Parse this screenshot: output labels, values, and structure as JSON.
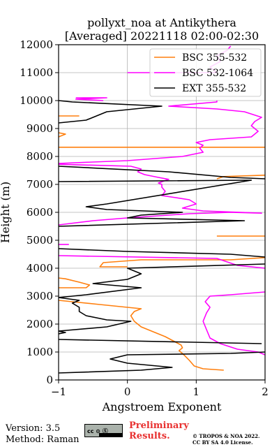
{
  "chart_data": {
    "type": "line",
    "title_line1": "pollyxt_noa at Antikythera",
    "title_line2": "[Averaged] 20221118 02:00-02:30",
    "xlabel": "Angstroem Exponent",
    "ylabel": "Height (m)",
    "xlim": [
      -1,
      2
    ],
    "ylim": [
      0,
      12000
    ],
    "xticks": [
      "−1",
      "0",
      "1",
      "2"
    ],
    "yticks": [
      "0",
      "1000",
      "2000",
      "3000",
      "4000",
      "5000",
      "6000",
      "7000",
      "8000",
      "9000",
      "10000",
      "11000",
      "12000"
    ],
    "grid": true,
    "legend_position": "top-right",
    "series": [
      {
        "name": "BSC 355-532",
        "color": "#ff7f0e",
        "segments": [
          [
            [
              1.4,
              350
            ],
            [
              1.1,
              400
            ],
            [
              0.97,
              500
            ],
            [
              0.9,
              700
            ],
            [
              0.82,
              900
            ],
            [
              0.75,
              1050
            ],
            [
              0.8,
              1150
            ],
            [
              0.78,
              1250
            ],
            [
              0.55,
              1550
            ],
            [
              0.4,
              1700
            ],
            [
              0.2,
              1900
            ],
            [
              0.1,
              2100
            ],
            [
              0.05,
              2300
            ],
            [
              0.1,
              2450
            ],
            [
              0.2,
              2550
            ],
            [
              -0.2,
              2650
            ],
            [
              -0.4,
              2700
            ],
            [
              -0.8,
              2800
            ],
            [
              -1,
              2850
            ]
          ],
          [
            [
              -1,
              3300
            ],
            [
              -0.6,
              3300
            ],
            [
              -0.55,
              3400
            ],
            [
              -0.7,
              3500
            ],
            [
              -0.9,
              3620
            ],
            [
              -1,
              3650
            ]
          ],
          [
            [
              0,
              4050
            ],
            [
              -0.4,
              4050
            ],
            [
              -0.35,
              4200
            ],
            [
              0.2,
              4300
            ],
            [
              1.5,
              4300
            ],
            [
              2,
              4380
            ]
          ],
          [
            [
              1.3,
              5150
            ],
            [
              2,
              5150
            ]
          ],
          [
            [
              1.3,
              7200
            ],
            [
              1.4,
              7280
            ],
            [
              2,
              7330
            ]
          ],
          [
            [
              -1,
              8330
            ],
            [
              2,
              8330
            ]
          ],
          [
            [
              -1,
              8700
            ],
            [
              -0.9,
              8800
            ],
            [
              -1,
              8850
            ]
          ],
          [
            [
              -1,
              9450
            ],
            [
              -0.7,
              9450
            ]
          ]
        ]
      },
      {
        "name": "BSC 532-1064",
        "color": "#ff00ff",
        "segments": [
          [
            [
              2,
              900
            ],
            [
              1.9,
              1000
            ],
            [
              1.6,
              1100
            ],
            [
              1.35,
              1300
            ],
            [
              1.2,
              1500
            ],
            [
              1.15,
              1800
            ],
            [
              1.1,
              2100
            ],
            [
              1.15,
              2400
            ],
            [
              1.2,
              2600
            ],
            [
              1.13,
              2800
            ],
            [
              1.2,
              3000
            ],
            [
              1.5,
              3050
            ],
            [
              2,
              3150
            ]
          ],
          [
            [
              2,
              4000
            ],
            [
              1.6,
              4100
            ],
            [
              1.3,
              4350
            ],
            [
              -1,
              4450
            ]
          ],
          [
            [
              -1,
              4850
            ],
            [
              -0.85,
              4850
            ]
          ],
          [
            [
              -1,
              5550
            ],
            [
              -0.5,
              5700
            ],
            [
              0,
              5800
            ],
            [
              0.9,
              5950
            ],
            [
              1.5,
              6000
            ],
            [
              1.95,
              5970
            ],
            [
              1.1,
              6050
            ],
            [
              0.8,
              6150
            ],
            [
              1,
              6300
            ],
            [
              0.9,
              6450
            ],
            [
              0.5,
              6600
            ],
            [
              0.55,
              6750
            ],
            [
              0.5,
              6900
            ],
            [
              0.5,
              7000
            ],
            [
              0.45,
              7050
            ],
            [
              0.6,
              7180
            ],
            [
              0.45,
              7250
            ],
            [
              0.25,
              7350
            ],
            [
              0.15,
              7450
            ],
            [
              0.2,
              7550
            ],
            [
              0.05,
              7650
            ],
            [
              -1,
              7720
            ]
          ],
          [
            [
              -1,
              7750
            ],
            [
              0,
              7850
            ],
            [
              0.8,
              8000
            ],
            [
              1.1,
              8150
            ],
            [
              1.05,
              8300
            ],
            [
              1.1,
              8400
            ],
            [
              1,
              8500
            ],
            [
              1.2,
              8600
            ],
            [
              1.8,
              8700
            ],
            [
              1.9,
              8900
            ],
            [
              1.8,
              9100
            ],
            [
              1.85,
              9250
            ],
            [
              1.95,
              9400
            ],
            [
              1.7,
              9600
            ],
            [
              1.3,
              9700
            ],
            [
              0.6,
              9800
            ],
            [
              1.3,
              9950
            ],
            [
              1.3,
              10000
            ]
          ],
          [
            [
              -0.75,
              10100
            ],
            [
              -0.3,
              10100
            ],
            [
              -0.75,
              10050
            ],
            [
              -0.35,
              10000
            ]
          ],
          [
            [
              0,
              11000
            ],
            [
              1.3,
              11000
            ],
            [
              1.2,
              11200
            ],
            [
              1.35,
              11400
            ],
            [
              1.3,
              11600
            ],
            [
              1.45,
              11800
            ],
            [
              1.5,
              11950
            ]
          ]
        ]
      },
      {
        "name": "EXT 355-532",
        "color": "#000000",
        "segments": [
          [
            [
              -1,
              250
            ],
            [
              0.2,
              350
            ],
            [
              0.65,
              450
            ],
            [
              0,
              600
            ],
            [
              -0.25,
              750
            ],
            [
              0,
              900
            ],
            [
              1.5,
              950
            ],
            [
              2,
              1000
            ]
          ],
          [
            [
              -1,
              1450
            ],
            [
              1.95,
              1300
            ]
          ],
          [
            [
              -1,
              1650
            ],
            [
              -0.9,
              1700
            ],
            [
              -1,
              1750
            ],
            [
              -0.3,
              1900
            ],
            [
              0.05,
              2100
            ],
            [
              -0.3,
              2150
            ],
            [
              -0.6,
              2300
            ],
            [
              -0.7,
              2450
            ],
            [
              -0.7,
              2600
            ],
            [
              -0.8,
              2750
            ],
            [
              -0.7,
              2850
            ],
            [
              -1,
              2950
            ],
            [
              -0.6,
              3050
            ],
            [
              0.2,
              3300
            ],
            [
              -0.5,
              3450
            ],
            [
              0,
              3600
            ],
            [
              0.2,
              3800
            ],
            [
              0,
              4000
            ],
            [
              2,
              4150
            ]
          ],
          [
            [
              2,
              4400
            ],
            [
              1.5,
              4500
            ],
            [
              0,
              4600
            ],
            [
              -1,
              4700
            ]
          ],
          [
            [
              -1,
              5500
            ],
            [
              1.7,
              5700
            ],
            [
              0,
              5800
            ],
            [
              0.2,
              5900
            ],
            [
              0.8,
              6000
            ],
            [
              -0.3,
              6100
            ],
            [
              -0.6,
              6200
            ],
            [
              -0.3,
              6300
            ],
            [
              1.8,
              7150
            ],
            [
              -1,
              7100
            ]
          ],
          [
            [
              -1,
              7650
            ],
            [
              0.6,
              7450
            ],
            [
              1.5,
              7250
            ],
            [
              2,
              7200
            ]
          ],
          [
            [
              -1,
              9200
            ],
            [
              -0.6,
              9300
            ],
            [
              -0.3,
              9600
            ],
            [
              0.5,
              9800
            ],
            [
              -0.8,
              9950
            ],
            [
              -1,
              10000
            ]
          ]
        ]
      }
    ]
  },
  "footer": {
    "version": "Version: 3.5",
    "method": "Method: Raman",
    "cc_text": "cc ⊙ Ⓢ",
    "prelim_line1": "Preliminary",
    "prelim_line2": "Results.",
    "copyright_line1": "© TROPOS & NOA 2022.",
    "copyright_line2": "CC BY SA 4.0 License."
  }
}
